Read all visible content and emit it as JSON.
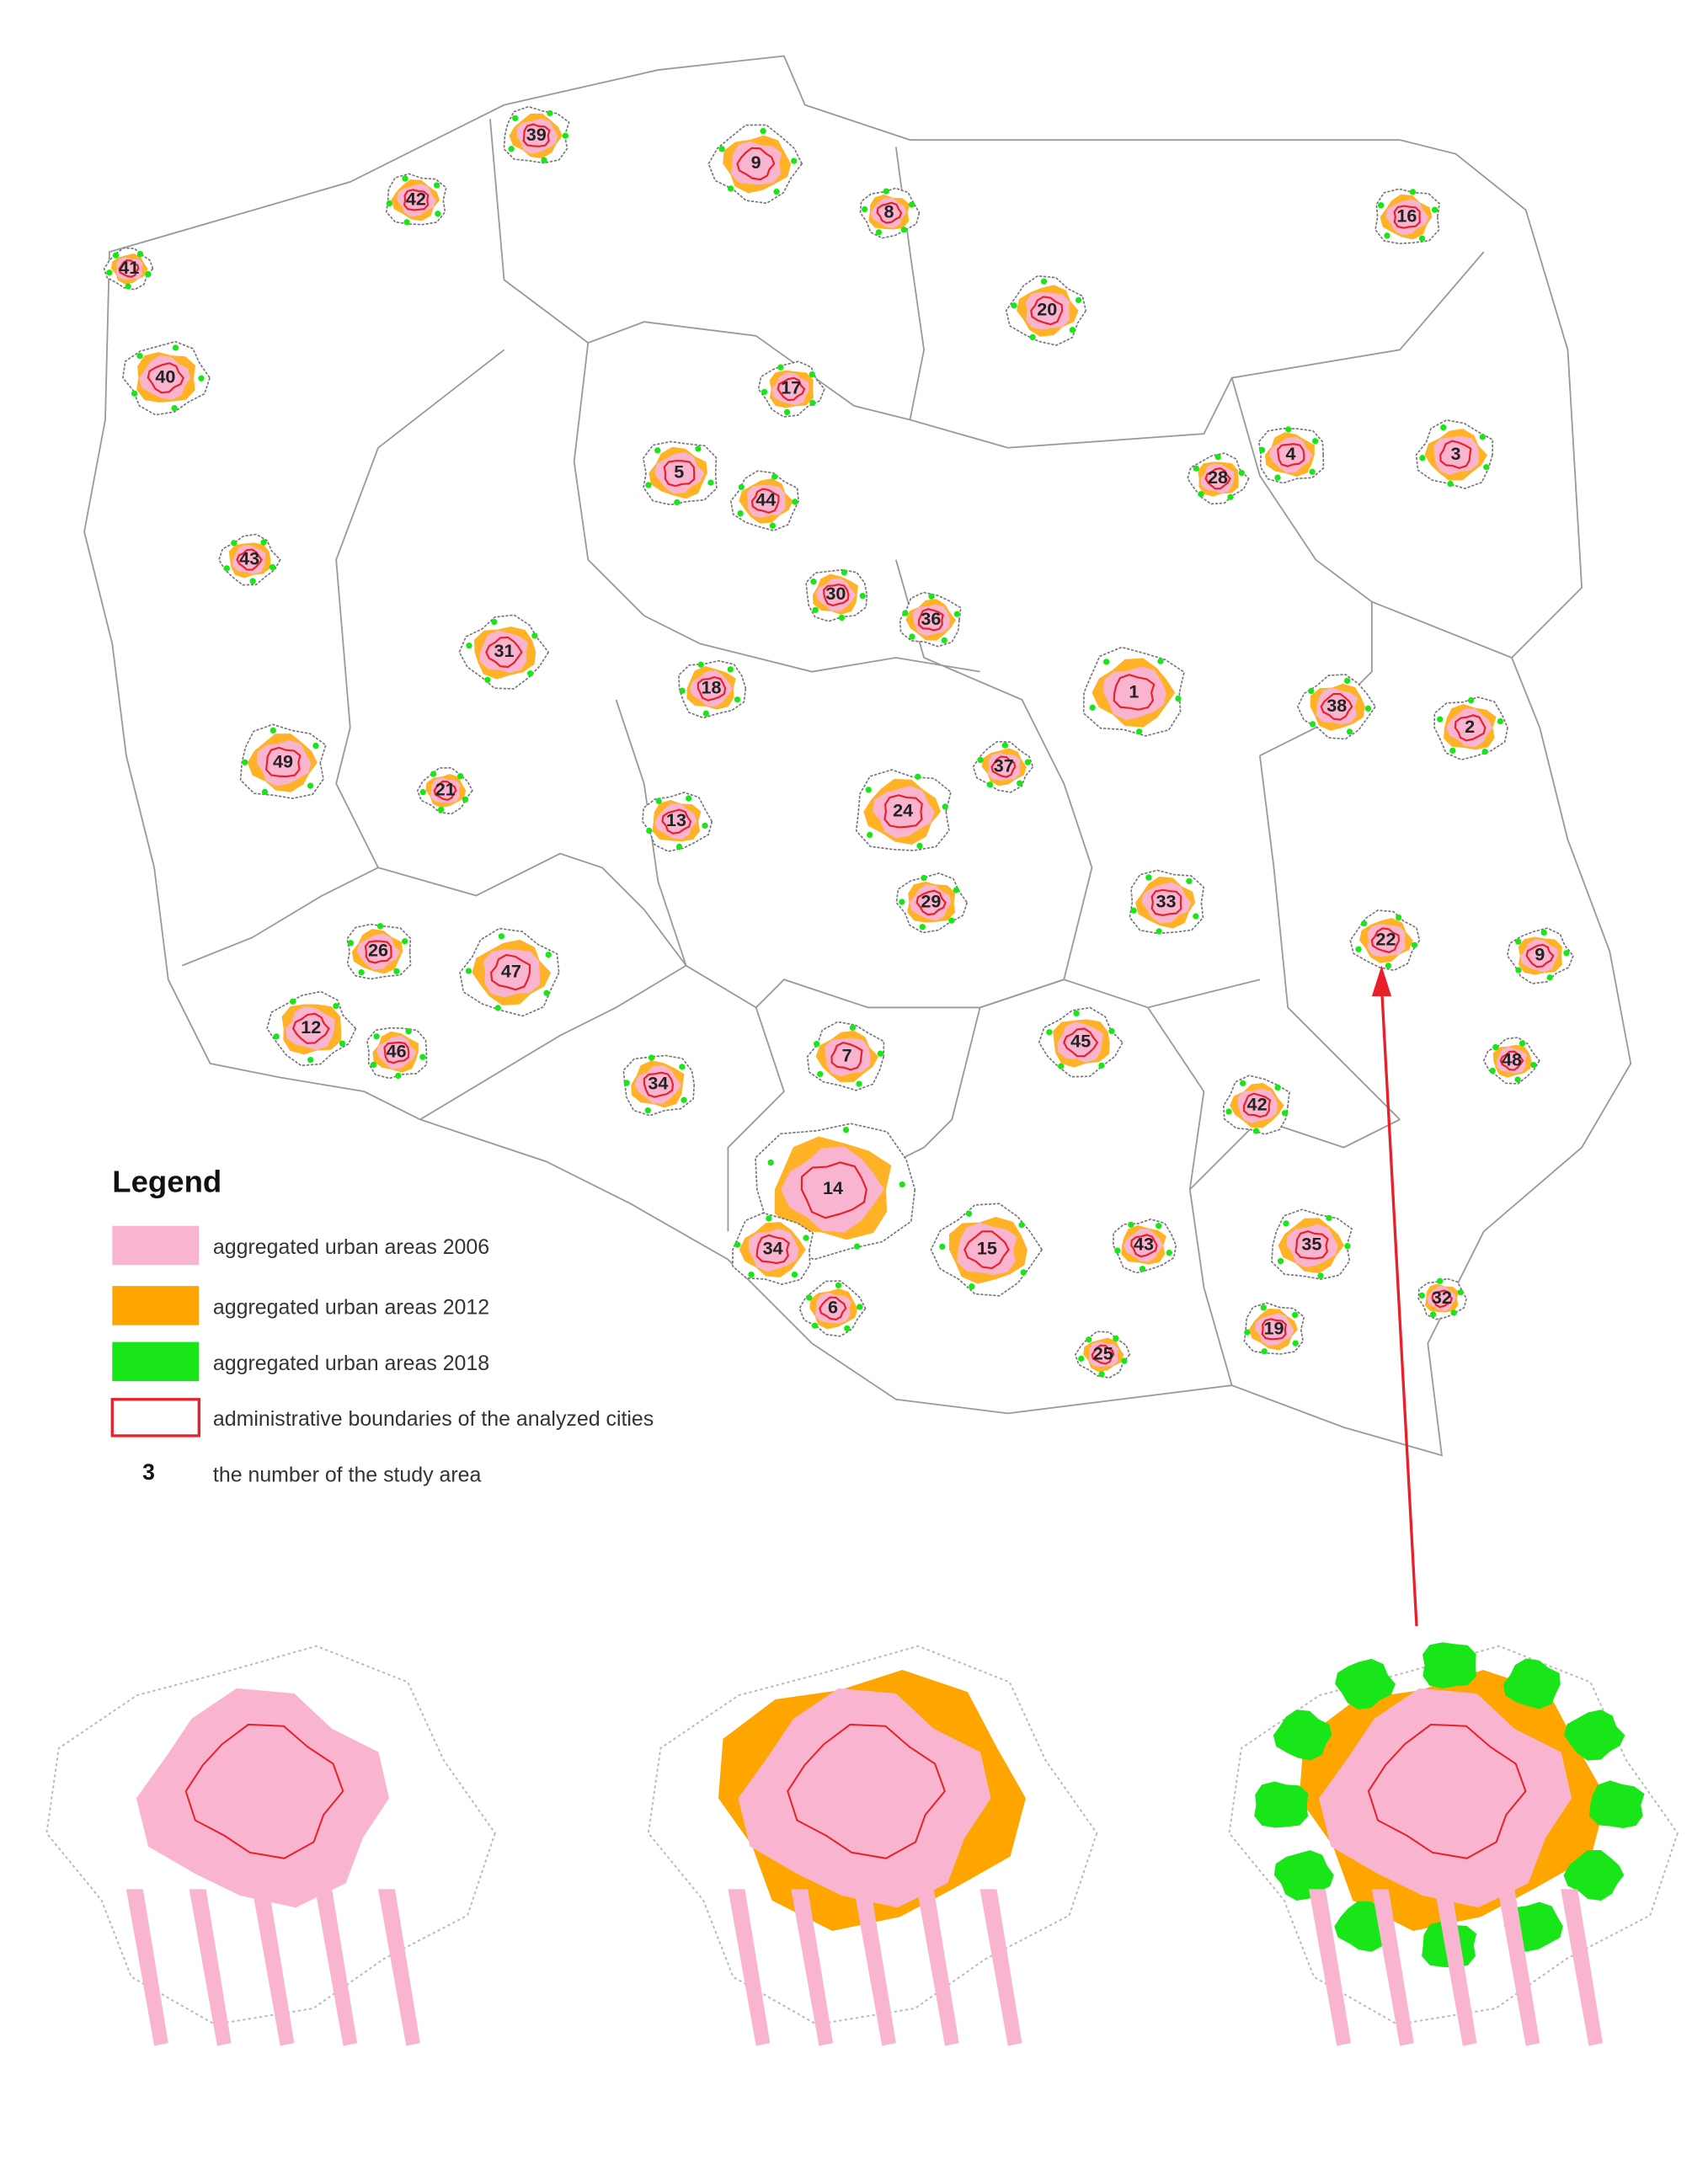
{
  "legend": {
    "title": "Legend",
    "items": [
      {
        "color": "#f9b4d0",
        "label": "aggregated urban areas 2006"
      },
      {
        "color": "#ffa500",
        "label": "aggregated urban areas 2012"
      },
      {
        "color": "#19e619",
        "label": "aggregated urban areas 2018"
      },
      {
        "color": "#e8202a",
        "label": "administrative boundaries of the analyzed cities"
      }
    ],
    "number_sample": {
      "symbol": "3",
      "label": "the number of the study area"
    }
  },
  "areas": [
    {
      "label": "39"
    },
    {
      "label": "9"
    },
    {
      "label": "8"
    },
    {
      "label": "42"
    },
    {
      "label": "41"
    },
    {
      "label": "40"
    },
    {
      "label": "16"
    },
    {
      "label": "20"
    },
    {
      "label": "17"
    },
    {
      "label": "5"
    },
    {
      "label": "44"
    },
    {
      "label": "28"
    },
    {
      "label": "4"
    },
    {
      "label": "3"
    },
    {
      "label": "43"
    },
    {
      "label": "30"
    },
    {
      "label": "36"
    },
    {
      "label": "31"
    },
    {
      "label": "18"
    },
    {
      "label": "1"
    },
    {
      "label": "38"
    },
    {
      "label": "2"
    },
    {
      "label": "49"
    },
    {
      "label": "21"
    },
    {
      "label": "13"
    },
    {
      "label": "24"
    },
    {
      "label": "37"
    },
    {
      "label": "29"
    },
    {
      "label": "33"
    },
    {
      "label": "22"
    },
    {
      "label": "9"
    },
    {
      "label": "26"
    },
    {
      "label": "47"
    },
    {
      "label": "12"
    },
    {
      "label": "46"
    },
    {
      "label": "7"
    },
    {
      "label": "45"
    },
    {
      "label": "34"
    },
    {
      "label": "42"
    },
    {
      "label": "48"
    },
    {
      "label": "14"
    },
    {
      "label": "34"
    },
    {
      "label": "15"
    },
    {
      "label": "43"
    },
    {
      "label": "35"
    },
    {
      "label": "6"
    },
    {
      "label": "32"
    },
    {
      "label": "19"
    },
    {
      "label": "25"
    }
  ]
}
